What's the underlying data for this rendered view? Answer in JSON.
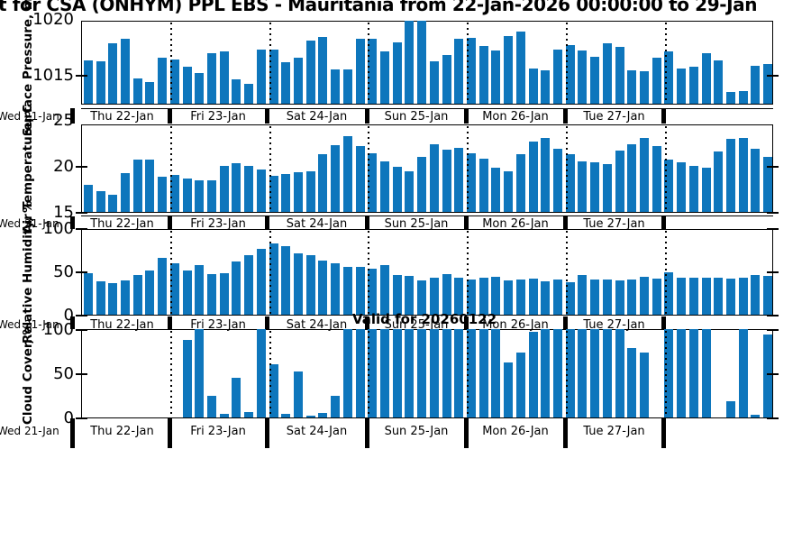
{
  "title": "t for CSA (ONHYM) PPL EBS  - Mauritania from 22-Jan-2026 00:00:00 to 29-Jan",
  "annotation": "Valid for 20260122",
  "x_axis": {
    "left_label": "Wed 21-Jan",
    "day_labels": [
      "Thu 22-Jan",
      "Fri 23-Jan",
      "Sat 24-Jan",
      "Sun 25-Jan",
      "Mon 26-Jan",
      "Tue 27-Jan",
      ""
    ]
  },
  "colors": {
    "bar": "#0E76BC",
    "axis": "#000000"
  },
  "chart_data": [
    {
      "type": "bar",
      "name": "pressure",
      "ylabel": "Surface Pressure, mb",
      "yticks": [
        1015,
        1020
      ],
      "ylim": [
        1012.45,
        1019.9
      ],
      "values": [
        1016.3,
        1016.2,
        1017.8,
        1018.2,
        1014.7,
        1014.4,
        1016.5,
        1016.4,
        1015.7,
        1015.2,
        1016.9,
        1017.1,
        1014.6,
        1014.2,
        1017.3,
        1017.3,
        1016.1,
        1016.5,
        1018.1,
        1018.4,
        1015.5,
        1015.5,
        1018.2,
        1018.2,
        1017.1,
        1017.9,
        1019.8,
        1019.8,
        1016.2,
        1016.8,
        1018.2,
        1018.3,
        1017.6,
        1017.2,
        1018.5,
        1018.9,
        1015.6,
        1015.4,
        1017.3,
        1017.7,
        1017.2,
        1016.6,
        1017.8,
        1017.5,
        1015.4,
        1015.3,
        1016.5,
        1017.1,
        1015.6,
        1015.7,
        1016.9,
        1016.3,
        1013.5,
        1013.6,
        1015.8,
        1016.0
      ]
    },
    {
      "type": "bar",
      "name": "temperature",
      "ylabel": "Air Temperature, C",
      "yticks": [
        15,
        20,
        25
      ],
      "ylim": [
        15,
        24.6
      ],
      "values": [
        17.9,
        17.3,
        16.9,
        19.2,
        20.7,
        20.7,
        18.8,
        19.0,
        18.6,
        18.4,
        18.4,
        20.0,
        20.3,
        20.0,
        19.6,
        18.9,
        19.1,
        19.3,
        19.4,
        21.3,
        22.3,
        23.2,
        22.2,
        21.4,
        20.5,
        19.9,
        19.4,
        21.0,
        22.4,
        21.8,
        22.0,
        21.4,
        20.8,
        19.8,
        19.4,
        21.3,
        22.6,
        23.0,
        21.9,
        21.3,
        20.5,
        20.4,
        20.2,
        21.7,
        22.4,
        23.0,
        22.2,
        20.7,
        20.4,
        20.0,
        19.8,
        21.6,
        22.9,
        23.0,
        21.9,
        21.0
      ]
    },
    {
      "type": "bar",
      "name": "humidity",
      "ylabel": "Relative Humidity, %",
      "yticks": [
        0,
        50,
        100
      ],
      "ylim": [
        0,
        100
      ],
      "values": [
        48,
        39,
        37,
        40,
        46,
        51,
        66,
        59,
        51,
        57,
        47,
        48,
        62,
        69,
        76,
        82,
        79,
        71,
        69,
        63,
        59,
        55,
        55,
        53,
        57,
        46,
        45,
        40,
        43,
        47,
        43,
        41,
        43,
        44,
        40,
        41,
        42,
        39,
        41,
        38,
        46,
        41,
        41,
        40,
        41,
        44,
        42,
        49,
        43,
        43,
        43,
        43,
        42,
        43,
        46,
        45
      ]
    },
    {
      "type": "bar",
      "name": "cloud-cover",
      "ylabel": "Cloud Cover, %",
      "yticks": [
        0,
        50,
        100
      ],
      "ylim": [
        0,
        101
      ],
      "values": [
        0,
        0,
        0,
        0,
        0,
        0,
        0,
        0,
        88,
        100,
        25,
        4,
        45,
        6,
        100,
        60,
        4,
        52,
        2,
        5,
        25,
        100,
        100,
        100,
        100,
        100,
        100,
        100,
        100,
        100,
        100,
        100,
        100,
        100,
        62,
        74,
        97,
        100,
        100,
        100,
        100,
        100,
        100,
        100,
        79,
        73,
        0,
        100,
        100,
        100,
        100,
        0,
        18,
        100,
        3,
        94
      ]
    }
  ]
}
